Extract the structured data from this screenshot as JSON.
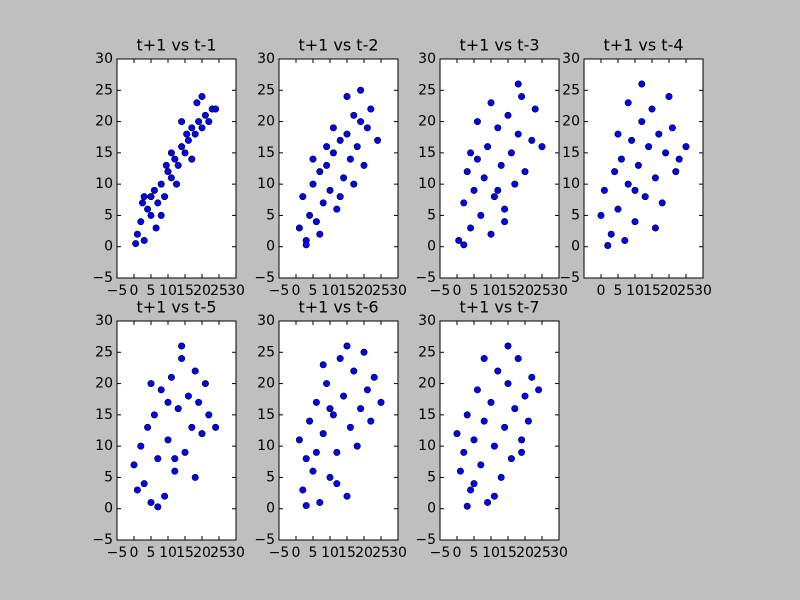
{
  "chart_data": [
    {
      "type": "scatter",
      "title": "t+1 vs t-1",
      "color": "#0000ff",
      "x": [
        1,
        2,
        3,
        4,
        5,
        6,
        7,
        8,
        9,
        10,
        11,
        12,
        13,
        14,
        15,
        16,
        17,
        18,
        19,
        20,
        21,
        22,
        23,
        0.5,
        2.5,
        6.5,
        9.5,
        12.5,
        15.5,
        18.5,
        5,
        11,
        17,
        14,
        8,
        20,
        3,
        24
      ],
      "y": [
        2,
        4,
        1,
        6,
        5,
        9,
        7,
        10,
        8,
        12,
        11,
        14,
        13,
        16,
        15,
        17,
        19,
        18,
        20,
        19,
        21,
        20,
        22,
        0.5,
        7,
        3,
        13,
        10,
        18,
        23,
        8,
        15,
        14,
        20,
        5,
        24,
        8,
        22
      ],
      "xlim": [
        -5,
        30
      ],
      "ylim": [
        -5,
        30
      ],
      "xticks": [
        {
          "value": -5,
          "label": "−5"
        },
        0,
        5,
        10,
        15,
        20,
        25,
        30
      ],
      "yticks": [
        {
          "value": -5,
          "label": "−5"
        },
        0,
        5,
        10,
        15,
        20,
        25,
        30
      ]
    },
    {
      "type": "scatter",
      "title": "t+1 vs t-2",
      "color": "#0000ff",
      "x": [
        1,
        2,
        3,
        4,
        5,
        6,
        7,
        8,
        9,
        10,
        11,
        12,
        13,
        14,
        15,
        16,
        17,
        18,
        19,
        20,
        21,
        22,
        24,
        3,
        7,
        11,
        15,
        19,
        5,
        13,
        17,
        9
      ],
      "y": [
        3,
        8,
        1,
        5,
        10,
        4,
        12,
        7,
        13,
        9,
        15,
        6,
        17,
        11,
        18,
        14,
        21,
        16,
        20,
        13,
        19,
        22,
        17,
        0.3,
        2,
        19,
        24,
        25,
        14,
        8,
        10,
        16
      ],
      "xlim": [
        -5,
        30
      ],
      "ylim": [
        -5,
        30
      ],
      "xticks": [
        {
          "value": -5,
          "label": "−5"
        },
        0,
        5,
        10,
        15,
        20,
        25,
        30
      ],
      "yticks": [
        {
          "value": -5,
          "label": "−5"
        },
        0,
        5,
        10,
        15,
        20,
        25,
        30
      ]
    },
    {
      "type": "scatter",
      "title": "t+1 vs t-3",
      "color": "#0000ff",
      "x": [
        0.5,
        2,
        3,
        4,
        5,
        6,
        7,
        8,
        9,
        10,
        11,
        12,
        13,
        14,
        15,
        16,
        17,
        18,
        19,
        20,
        22,
        23,
        25,
        2,
        6,
        10,
        14,
        18,
        4,
        12
      ],
      "y": [
        1,
        7,
        12,
        3,
        9,
        14,
        5,
        11,
        16,
        2,
        8,
        19,
        13,
        6,
        21,
        15,
        10,
        18,
        24,
        12,
        17,
        22,
        16,
        0.3,
        20,
        23,
        4,
        26,
        15,
        9
      ],
      "xlim": [
        -5,
        30
      ],
      "ylim": [
        -5,
        30
      ],
      "xticks": [
        {
          "value": -5,
          "label": "−5"
        },
        0,
        5,
        10,
        15,
        20,
        25,
        30
      ],
      "yticks": [
        {
          "value": -5,
          "label": "−5"
        },
        0,
        5,
        10,
        15,
        20,
        25,
        30
      ]
    },
    {
      "type": "scatter",
      "title": "t+1 vs t-4",
      "color": "#0000ff",
      "x": [
        0,
        1,
        3,
        4,
        5,
        6,
        7,
        8,
        9,
        10,
        11,
        12,
        13,
        14,
        15,
        16,
        17,
        18,
        19,
        20,
        21,
        23,
        25,
        2,
        8,
        12,
        16,
        22,
        5,
        10
      ],
      "y": [
        5,
        9,
        2,
        12,
        6,
        14,
        1,
        10,
        17,
        4,
        13,
        20,
        8,
        16,
        22,
        11,
        18,
        7,
        15,
        24,
        19,
        14,
        16,
        0.2,
        23,
        26,
        3,
        12,
        18,
        9
      ],
      "xlim": [
        -5,
        30
      ],
      "ylim": [
        -5,
        30
      ],
      "xticks": [
        0,
        5,
        10,
        15,
        20,
        25,
        30
      ],
      "yticks": [
        {
          "value": -5,
          "label": "−5"
        },
        0,
        5,
        10,
        15,
        20,
        25,
        30
      ]
    },
    {
      "type": "scatter",
      "title": "t+1 vs t-5",
      "color": "#0000ff",
      "x": [
        0,
        2,
        3,
        4,
        5,
        6,
        7,
        8,
        9,
        10,
        11,
        12,
        13,
        14,
        15,
        16,
        17,
        18,
        19,
        20,
        21,
        22,
        24,
        1,
        7,
        10,
        14,
        18,
        5,
        12
      ],
      "y": [
        7,
        10,
        4,
        13,
        1,
        15,
        8,
        19,
        2,
        11,
        21,
        6,
        16,
        24,
        9,
        18,
        13,
        22,
        17,
        12,
        20,
        15,
        13,
        3,
        0.3,
        17,
        26,
        5,
        20,
        8
      ],
      "xlim": [
        -5,
        30
      ],
      "ylim": [
        -5,
        30
      ],
      "xticks": [
        {
          "value": -5,
          "label": "−5"
        },
        0,
        5,
        10,
        15,
        20,
        25,
        30
      ],
      "yticks": [
        {
          "value": -5,
          "label": "−5"
        },
        0,
        5,
        10,
        15,
        20,
        25,
        30
      ]
    },
    {
      "type": "scatter",
      "title": "t+1 vs t-6",
      "color": "#0000ff",
      "x": [
        1,
        2,
        3,
        4,
        5,
        6,
        7,
        8,
        9,
        10,
        11,
        12,
        13,
        14,
        15,
        16,
        17,
        18,
        19,
        20,
        21,
        22,
        23,
        25,
        3,
        8,
        12,
        15,
        6,
        10
      ],
      "y": [
        11,
        3,
        8,
        14,
        6,
        17,
        1,
        12,
        20,
        5,
        15,
        9,
        24,
        18,
        2,
        13,
        22,
        10,
        16,
        25,
        19,
        14,
        21,
        17,
        0.5,
        23,
        4,
        26,
        9,
        16
      ],
      "xlim": [
        -5,
        30
      ],
      "ylim": [
        -5,
        30
      ],
      "xticks": [
        {
          "value": -5,
          "label": "−5"
        },
        0,
        5,
        10,
        15,
        20,
        25,
        30
      ],
      "yticks": [
        {
          "value": -5,
          "label": "−5"
        },
        0,
        5,
        10,
        15,
        20,
        25,
        30
      ]
    },
    {
      "type": "scatter",
      "title": "t+1 vs t-7",
      "color": "#0000ff",
      "x": [
        0,
        1,
        2,
        3,
        4,
        5,
        6,
        7,
        8,
        9,
        10,
        11,
        12,
        13,
        14,
        15,
        16,
        17,
        18,
        19,
        20,
        21,
        22,
        24,
        3,
        8,
        11,
        15,
        19,
        5
      ],
      "y": [
        12,
        6,
        9,
        15,
        3,
        11,
        19,
        7,
        14,
        1,
        17,
        10,
        22,
        5,
        13,
        20,
        8,
        16,
        24,
        11,
        18,
        14,
        21,
        19,
        0.4,
        24,
        2,
        26,
        9,
        4
      ],
      "xlim": [
        -5,
        30
      ],
      "ylim": [
        -5,
        30
      ],
      "xticks": [
        {
          "value": -5,
          "label": "−5"
        },
        0,
        5,
        10,
        15,
        20,
        25,
        30
      ],
      "yticks": [
        {
          "value": -5,
          "label": "−5"
        },
        0,
        5,
        10,
        15,
        20,
        25,
        30
      ]
    }
  ]
}
